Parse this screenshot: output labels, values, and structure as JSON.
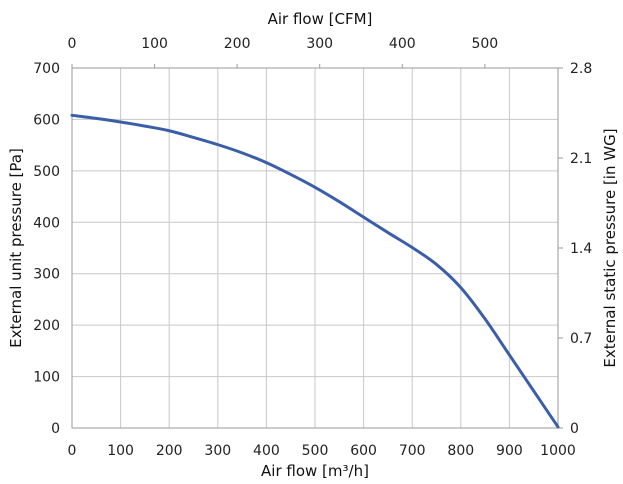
{
  "chart_data": {
    "type": "line",
    "xlabel": "Air flow [m³/h]",
    "x2label": "Air flow [CFM]",
    "ylabel": "External unit pressure [Pa]",
    "y2label": "External static pressure [in WG]",
    "xlim": [
      0,
      1000
    ],
    "ylim": [
      0,
      700
    ],
    "x_ticks": [
      0,
      100,
      200,
      300,
      400,
      500,
      600,
      700,
      800,
      900,
      1000
    ],
    "y_ticks": [
      0,
      100,
      200,
      300,
      400,
      500,
      600,
      700
    ],
    "x2_ticks": [
      0,
      100,
      200,
      300,
      400,
      500
    ],
    "x2_per_x": 0.5886,
    "y2_ticks": [
      "0",
      "0.7",
      "1.4",
      "2.1",
      "2.8"
    ],
    "y2_max": 2.8,
    "grid": true,
    "series": [
      {
        "color": "#3a5ea8",
        "x": [
          0,
          50,
          100,
          150,
          200,
          250,
          300,
          350,
          400,
          450,
          500,
          550,
          600,
          650,
          700,
          750,
          800,
          850,
          900,
          950,
          1000
        ],
        "y": [
          608,
          602,
          595,
          587,
          578,
          565,
          551,
          535,
          516,
          493,
          468,
          440,
          410,
          380,
          351,
          318,
          273,
          212,
          142,
          72,
          2
        ]
      }
    ]
  }
}
